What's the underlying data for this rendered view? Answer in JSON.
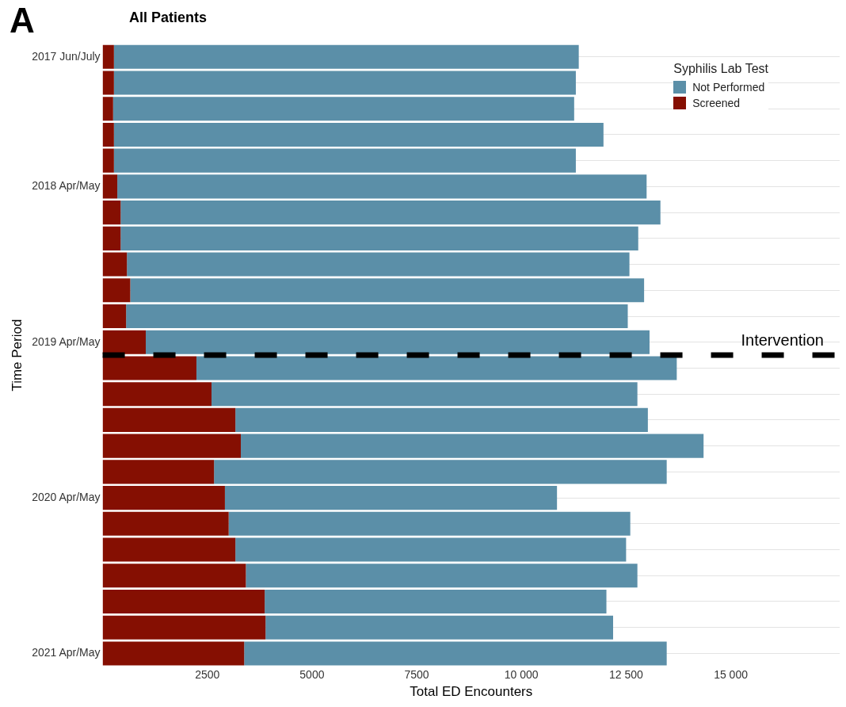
{
  "chart_data": {
    "type": "bar",
    "orientation": "horizontal",
    "stacked": true,
    "title": "All Patients",
    "xlabel": "Total ED Encounters",
    "ylabel": "Time Period",
    "legend_title": "Syphilis Lab Test",
    "legend": "top right",
    "grid": "y",
    "categories": [
      "2017 Jun/July",
      null,
      null,
      null,
      null,
      "2018 Apr/May",
      null,
      null,
      null,
      null,
      null,
      "2019 Apr/May",
      null,
      null,
      null,
      null,
      null,
      "2020 Apr/May",
      null,
      null,
      null,
      null,
      null,
      "2021 Apr/May"
    ],
    "series": [
      {
        "name": "Screened",
        "color": "#850f02",
        "values": [
          270,
          270,
          250,
          270,
          270,
          350,
          430,
          430,
          580,
          660,
          560,
          1030,
          2240,
          2600,
          3170,
          3300,
          2660,
          2920,
          3010,
          3170,
          3420,
          3870,
          3890,
          3380
        ]
      },
      {
        "name": "Not Performed",
        "color": "#5b8fa8",
        "values": [
          11100,
          11030,
          11010,
          11690,
          11030,
          12640,
          12890,
          12360,
          12000,
          12270,
          11980,
          12030,
          11470,
          10170,
          9850,
          11050,
          10810,
          7930,
          9590,
          9330,
          9350,
          8160,
          8300,
          10090
        ]
      }
    ],
    "xlim": [
      0,
      17600
    ],
    "xticks": [
      2500,
      5000,
      7500,
      {
        "value": 10000,
        "label": "10 000"
      },
      {
        "value": 12500,
        "label": "12 500"
      },
      {
        "value": 15000,
        "label": "15 000"
      }
    ],
    "ref_lines": [
      {
        "axis": "y",
        "value": "2019 Apr/May",
        "label": "Intervention",
        "color": "#000000",
        "line_style": "dashed"
      }
    ],
    "annotations": [
      "A"
    ]
  }
}
